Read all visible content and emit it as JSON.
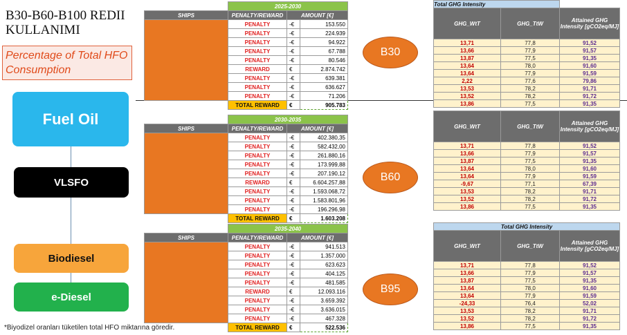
{
  "title": "B30-B60-B100 REDII KULLANIMI",
  "subtitle": "Percentage of Total HFO Consumption",
  "flow": [
    "Fuel Oil",
    "VLSFO",
    "Biodiesel",
    "e-Diesel"
  ],
  "footnote": "*Biyodizel oranları tüketilen total HFO miktarına göredir.",
  "colors": {
    "fuel_oil": "#2ab7ec",
    "vlsfo": "#000000",
    "biodiesel": "#f7a53b",
    "ediesel": "#22b14c",
    "ship": "#e87722",
    "period": "#8bc34a",
    "total": "#ffc000"
  },
  "headers": {
    "ships": "SHIPS",
    "penalty_reward": "PENALTY/REWARD",
    "amount": "AMOUNT [€]",
    "total_reward": "TOTAL REWARD",
    "currency": "€",
    "neg_currency": "-€"
  },
  "tables": [
    {
      "period": "2025-2030",
      "scenario": "B30",
      "rows": [
        {
          "type": "PENALTY",
          "cur": "-€",
          "amount": "153.550"
        },
        {
          "type": "PENALTY",
          "cur": "-€",
          "amount": "224.939"
        },
        {
          "type": "PENALTY",
          "cur": "-€",
          "amount": "94.922"
        },
        {
          "type": "PENALTY",
          "cur": "-€",
          "amount": "67.788"
        },
        {
          "type": "PENALTY",
          "cur": "-€",
          "amount": "80.546"
        },
        {
          "type": "REWARD",
          "cur": "€",
          "amount": "2.874.742"
        },
        {
          "type": "PENALTY",
          "cur": "-€",
          "amount": "639.381"
        },
        {
          "type": "PENALTY",
          "cur": "-€",
          "amount": "636.627"
        },
        {
          "type": "PENALTY",
          "cur": "-€",
          "amount": "71.206"
        }
      ],
      "total": "905.783"
    },
    {
      "period": "2030-2035",
      "scenario": "B60",
      "rows": [
        {
          "type": "PENALTY",
          "cur": "-€",
          "amount": "402.380,35"
        },
        {
          "type": "PENALTY",
          "cur": "-€",
          "amount": "582.432,00"
        },
        {
          "type": "PENALTY",
          "cur": "-€",
          "amount": "261.880,16"
        },
        {
          "type": "PENALTY",
          "cur": "-€",
          "amount": "173.999,88"
        },
        {
          "type": "PENALTY",
          "cur": "-€",
          "amount": "207.190,12"
        },
        {
          "type": "REWARD",
          "cur": "€",
          "amount": "6.604.257,88"
        },
        {
          "type": "PENALTY",
          "cur": "-€",
          "amount": "1.593.068,72"
        },
        {
          "type": "PENALTY",
          "cur": "-€",
          "amount": "1.583.801,96"
        },
        {
          "type": "PENALTY",
          "cur": "-€",
          "amount": "196.296,98"
        }
      ],
      "total": "1.603.208"
    },
    {
      "period": "2035-2040",
      "scenario": "B95",
      "rows": [
        {
          "type": "PENALTY",
          "cur": "-€",
          "amount": "941.513"
        },
        {
          "type": "PENALTY",
          "cur": "-€",
          "amount": "1.357.000"
        },
        {
          "type": "PENALTY",
          "cur": "-€",
          "amount": "623.623"
        },
        {
          "type": "PENALTY",
          "cur": "-€",
          "amount": "404.125"
        },
        {
          "type": "PENALTY",
          "cur": "-€",
          "amount": "481.585"
        },
        {
          "type": "REWARD",
          "cur": "€",
          "amount": "12.093.116"
        },
        {
          "type": "PENALTY",
          "cur": "-€",
          "amount": "3.659.392"
        },
        {
          "type": "PENALTY",
          "cur": "-€",
          "amount": "3.636.015"
        },
        {
          "type": "PENALTY",
          "cur": "-€",
          "amount": "467.328"
        }
      ],
      "total": "522.536"
    }
  ],
  "ghg_headers": {
    "caption": "Total GHG Intensity",
    "wtt": "GHG_WtT",
    "ttw": "GHG_TtW",
    "attained": "Attained GHG Intensity [gCO2eq/MJ]"
  },
  "ghg_tables": [
    {
      "show_caption": true,
      "rows": [
        [
          "13,71",
          "77,8",
          "91,52"
        ],
        [
          "13,66",
          "77,9",
          "91,57"
        ],
        [
          "13,87",
          "77,5",
          "91,35"
        ],
        [
          "13,64",
          "78,0",
          "91,60"
        ],
        [
          "13,64",
          "77,9",
          "91,59"
        ],
        [
          "2,22",
          "77,6",
          "79,86"
        ],
        [
          "13,53",
          "78,2",
          "91,71"
        ],
        [
          "13,52",
          "78,2",
          "91,72"
        ],
        [
          "13,86",
          "77,5",
          "91,35"
        ]
      ]
    },
    {
      "show_caption": false,
      "rows": [
        [
          "13,71",
          "77,8",
          "91,52"
        ],
        [
          "13,66",
          "77,9",
          "91,57"
        ],
        [
          "13,87",
          "77,5",
          "91,35"
        ],
        [
          "13,64",
          "78,0",
          "91,60"
        ],
        [
          "13,64",
          "77,9",
          "91,59"
        ],
        [
          "-9,67",
          "77,1",
          "67,39"
        ],
        [
          "13,53",
          "78,2",
          "91,71"
        ],
        [
          "13,52",
          "78,2",
          "91,72"
        ],
        [
          "13,86",
          "77,5",
          "91,35"
        ]
      ]
    },
    {
      "show_caption": true,
      "rows": [
        [
          "13,71",
          "77,8",
          "91,52"
        ],
        [
          "13,66",
          "77,9",
          "91,57"
        ],
        [
          "13,87",
          "77,5",
          "91,35"
        ],
        [
          "13,64",
          "78,0",
          "91,60"
        ],
        [
          "13,64",
          "77,9",
          "91,59"
        ],
        [
          "-24,33",
          "76,4",
          "52,02"
        ],
        [
          "13,53",
          "78,2",
          "91,71"
        ],
        [
          "13,52",
          "78,2",
          "91,72"
        ],
        [
          "13,86",
          "77,5",
          "91,35"
        ]
      ]
    }
  ]
}
